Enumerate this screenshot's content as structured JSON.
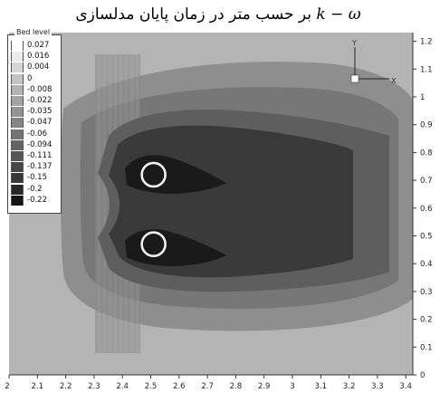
{
  "caption": {
    "math": "k − ω",
    "text": "بر حسب متر در زمان پایان مدلسازی"
  },
  "legend": {
    "title": "Bed level",
    "entries": [
      {
        "label": "0.027",
        "color": "#ffffff"
      },
      {
        "label": "0.016",
        "color": "#ebebeb"
      },
      {
        "label": "0.004",
        "color": "#d6d6d6"
      },
      {
        "label": "0",
        "color": "#c4c4c4"
      },
      {
        "label": "-0.008",
        "color": "#b3b3b3"
      },
      {
        "label": "-0.022",
        "color": "#a3a3a3"
      },
      {
        "label": "-0.035",
        "color": "#939393"
      },
      {
        "label": "-0.047",
        "color": "#848484"
      },
      {
        "label": "-0.06",
        "color": "#747474"
      },
      {
        "label": "-0.094",
        "color": "#646464"
      },
      {
        "label": "-0.111",
        "color": "#555555"
      },
      {
        "label": "-0.137",
        "color": "#464646"
      },
      {
        "label": "-0.15",
        "color": "#373737"
      },
      {
        "label": "-0.2",
        "color": "#272727"
      },
      {
        "label": "-0.22",
        "color": "#141414"
      }
    ]
  },
  "axes": {
    "x_ticks": [
      "2",
      "2.1",
      "2.2",
      "2.3",
      "2.4",
      "2.5",
      "2.6",
      "2.7",
      "2.8",
      "2.9",
      "3",
      "3.1",
      "3.2",
      "3.3",
      "3.4"
    ],
    "y_ticks": [
      "0",
      "0.1",
      "0.2",
      "0.3",
      "0.4",
      "0.5",
      "0.6",
      "0.7",
      "0.8",
      "0.9",
      "1",
      "1.1",
      "1.2"
    ],
    "triad_y": "Y",
    "triad_x": "X"
  },
  "piers": [
    {
      "x": 2.51,
      "y": 0.72
    },
    {
      "x": 2.51,
      "y": 0.47
    }
  ]
}
